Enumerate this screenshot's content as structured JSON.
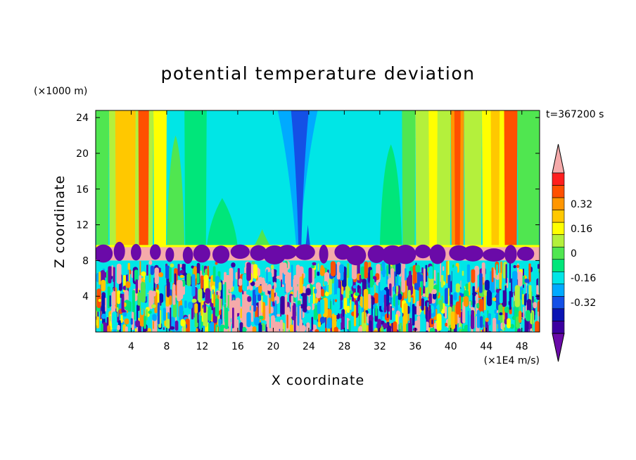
{
  "chart_data": {
    "type": "heatmap",
    "title": "potential temperature deviation",
    "xlabel": "X coordinate",
    "ylabel": "Z coordinate",
    "x_unit": "(×1E4 m/s)",
    "y_unit": "(×1000 m)",
    "time_label": "t=367200 s",
    "xlim": [
      0,
      50
    ],
    "ylim": [
      0,
      24.8
    ],
    "x_ticks": [
      4,
      8,
      12,
      16,
      20,
      24,
      28,
      32,
      36,
      40,
      44,
      48
    ],
    "y_ticks": [
      4,
      8,
      12,
      16,
      20,
      24
    ],
    "colorbar": {
      "labels": [
        "0.32",
        "0.16",
        "0",
        "-0.16",
        "-0.32"
      ],
      "label_values": [
        0.32,
        0.16,
        0,
        -0.16,
        -0.32
      ],
      "levels": [
        -0.4,
        -0.32,
        -0.24,
        -0.16,
        -0.08,
        0,
        0.08,
        0.16,
        0.24,
        0.32,
        0.4
      ],
      "colors": [
        "#6a0aa8",
        "#3c00a0",
        "#0a14b4",
        "#1450e6",
        "#00aaff",
        "#00e6e6",
        "#00e67a",
        "#50e650",
        "#b4f03c",
        "#ffff00",
        "#ffc800",
        "#ff9600",
        "#ff5000",
        "#ff1e1e",
        "#f5aaaa"
      ]
    },
    "regions": [
      {
        "name": "upper-layer",
        "z_range": [
          9.5,
          24.8
        ],
        "x_range": [
          0,
          50
        ]
      },
      {
        "name": "inversion-band",
        "z_range": [
          8,
          9.5
        ],
        "x_range": [
          0,
          50
        ]
      },
      {
        "name": "lower-turbulent-layer",
        "z_range": [
          0,
          8
        ],
        "x_range": [
          0,
          50
        ]
      }
    ]
  }
}
